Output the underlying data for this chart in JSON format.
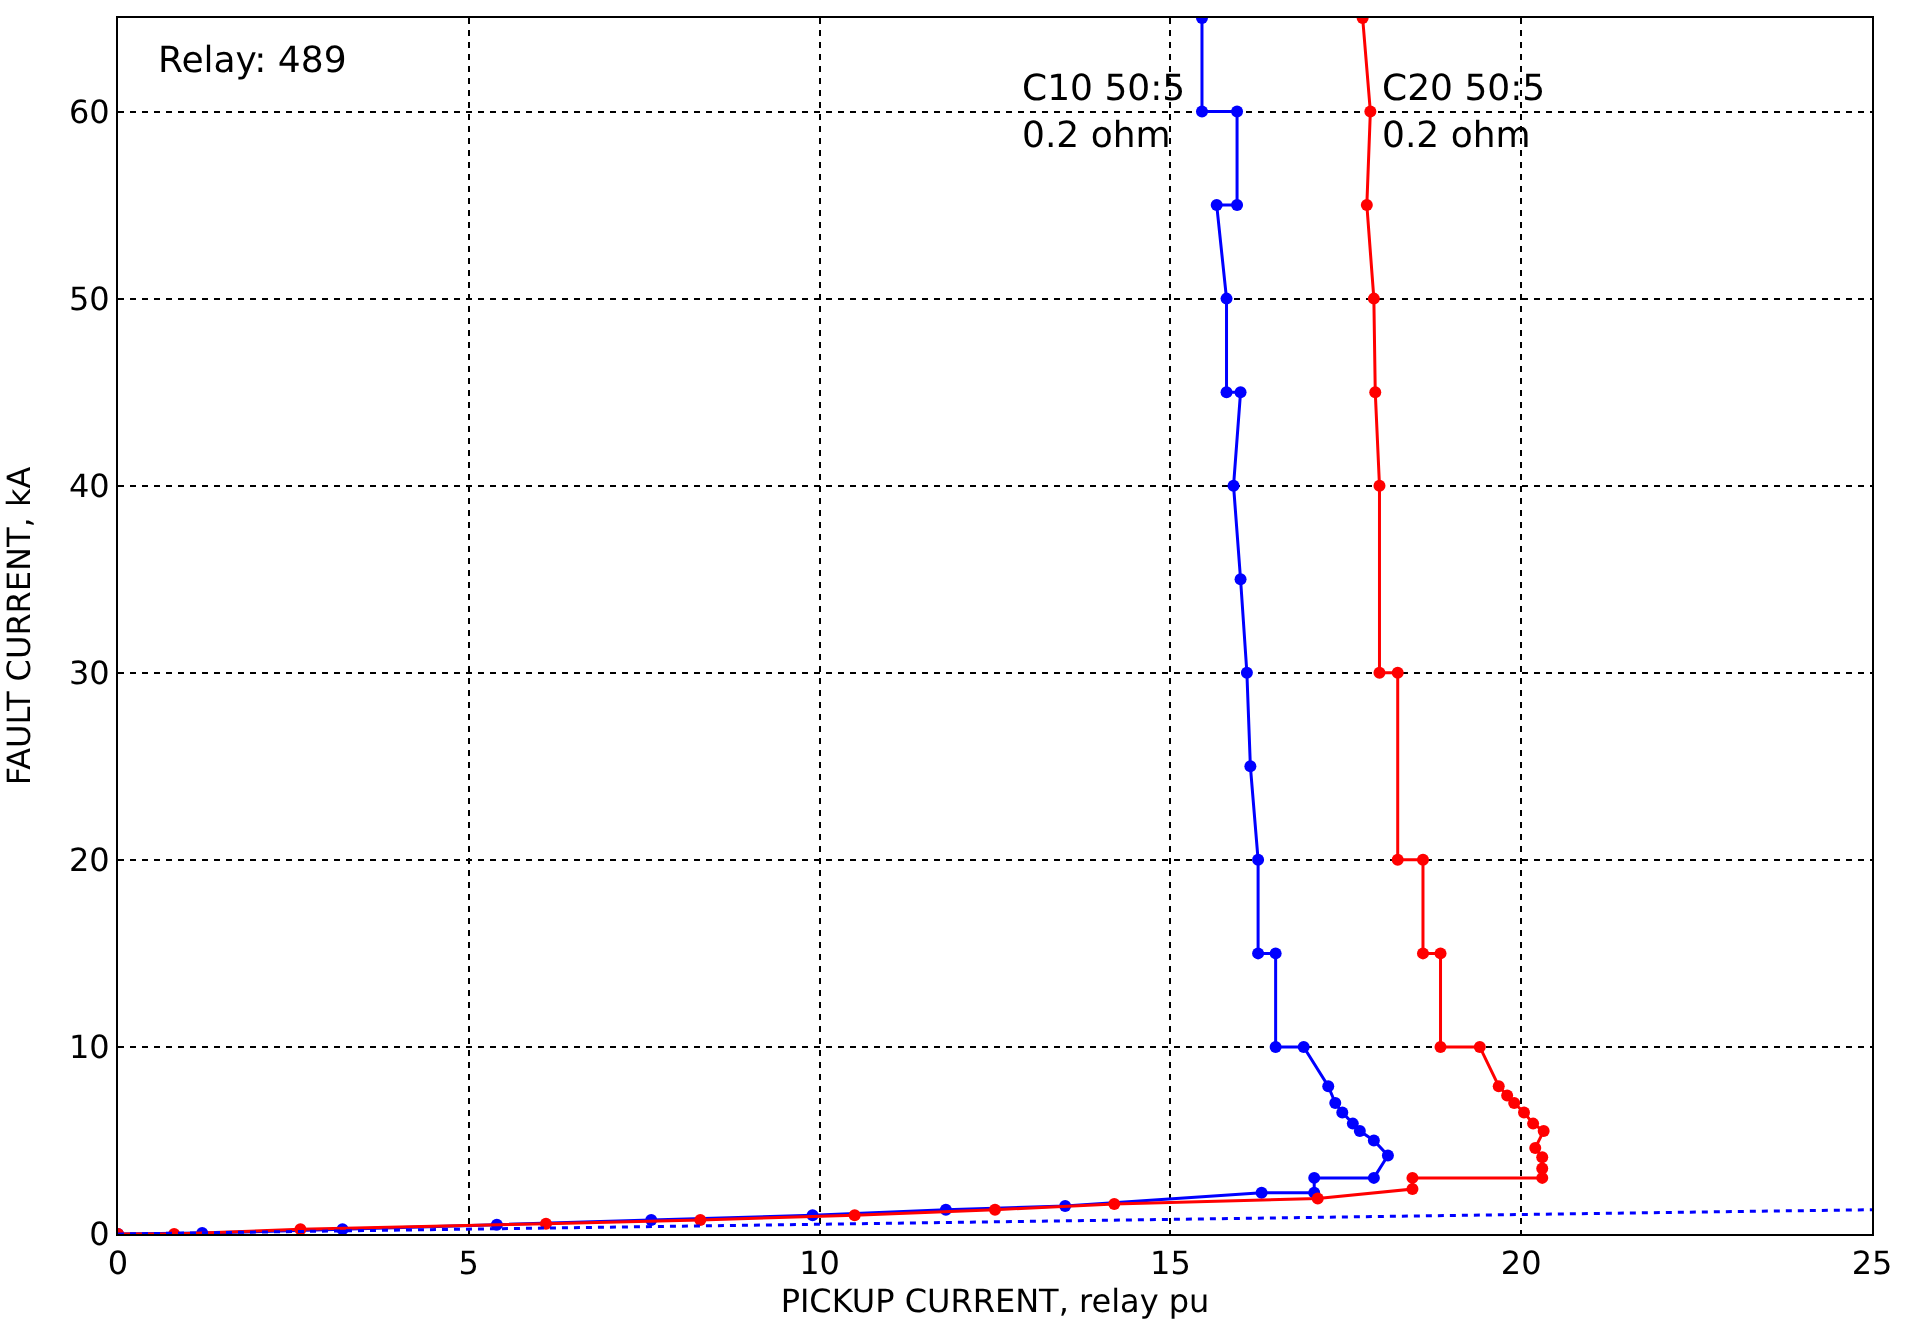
{
  "chart_data": {
    "type": "line",
    "xlabel": "PICKUP CURRENT, relay pu",
    "ylabel": "FAULT CURRENT, kA",
    "annotations": [
      "Relay: 489"
    ],
    "xlim": [
      0,
      25
    ],
    "ylim": [
      0,
      65
    ],
    "xticks": [
      0,
      5,
      10,
      15,
      20,
      25
    ],
    "yticks": [
      0,
      10,
      20,
      30,
      40,
      50,
      60
    ],
    "grid": true,
    "marker": "circle",
    "legend": false,
    "series": [
      {
        "name": "C10 50:5\n0.2 ohm",
        "color": "#0000ff",
        "x": [
          0,
          1.2,
          3.2,
          5.4,
          7.6,
          9.9,
          11.8,
          13.5,
          16.3,
          17.05,
          17.05,
          17.9,
          18.1,
          17.9,
          17.7,
          17.6,
          17.45,
          17.35,
          17.25,
          16.9,
          16.5,
          16.5,
          16.25,
          16.25,
          16.14,
          16.09,
          16.0,
          15.9,
          16.0,
          15.8,
          15.8,
          15.66,
          15.95,
          15.95,
          15.45,
          15.45
        ],
        "values": [
          0,
          0.05,
          0.25,
          0.5,
          0.75,
          1.0,
          1.3,
          1.5,
          2.2,
          2.2,
          3.0,
          3.0,
          4.2,
          5.0,
          5.5,
          5.9,
          6.5,
          7.0,
          7.9,
          10,
          10,
          15,
          15,
          20,
          25,
          30,
          35,
          40,
          45,
          45,
          50,
          55,
          55,
          60,
          60,
          65
        ]
      },
      {
        "name": "C20 50:5\n0.2 ohm",
        "color": "#ff0000",
        "x": [
          0,
          0.8,
          2.6,
          6.1,
          8.3,
          10.5,
          12.5,
          14.2,
          17.1,
          18.45,
          18.45,
          20.3,
          20.3,
          20.3,
          20.2,
          20.32,
          20.17,
          20.04,
          19.9,
          19.8,
          19.68,
          19.41,
          18.85,
          18.85,
          18.6,
          18.6,
          18.24,
          18.24,
          17.98,
          17.98,
          17.92,
          17.9,
          17.8,
          17.85,
          17.74
        ],
        "values": [
          0,
          0,
          0.25,
          0.55,
          0.75,
          1.0,
          1.3,
          1.6,
          1.9,
          2.4,
          3.0,
          3.0,
          3.5,
          4.1,
          4.6,
          5.5,
          5.9,
          6.5,
          7.0,
          7.4,
          7.9,
          10,
          10,
          15,
          15,
          20,
          20,
          30,
          30,
          40,
          45,
          50,
          55,
          60,
          65
        ]
      },
      {
        "color": "#0000ff",
        "x": [
          0,
          25
        ],
        "values": [
          0,
          1.3
        ],
        "marker": "none",
        "line_style": "dotted"
      }
    ]
  }
}
